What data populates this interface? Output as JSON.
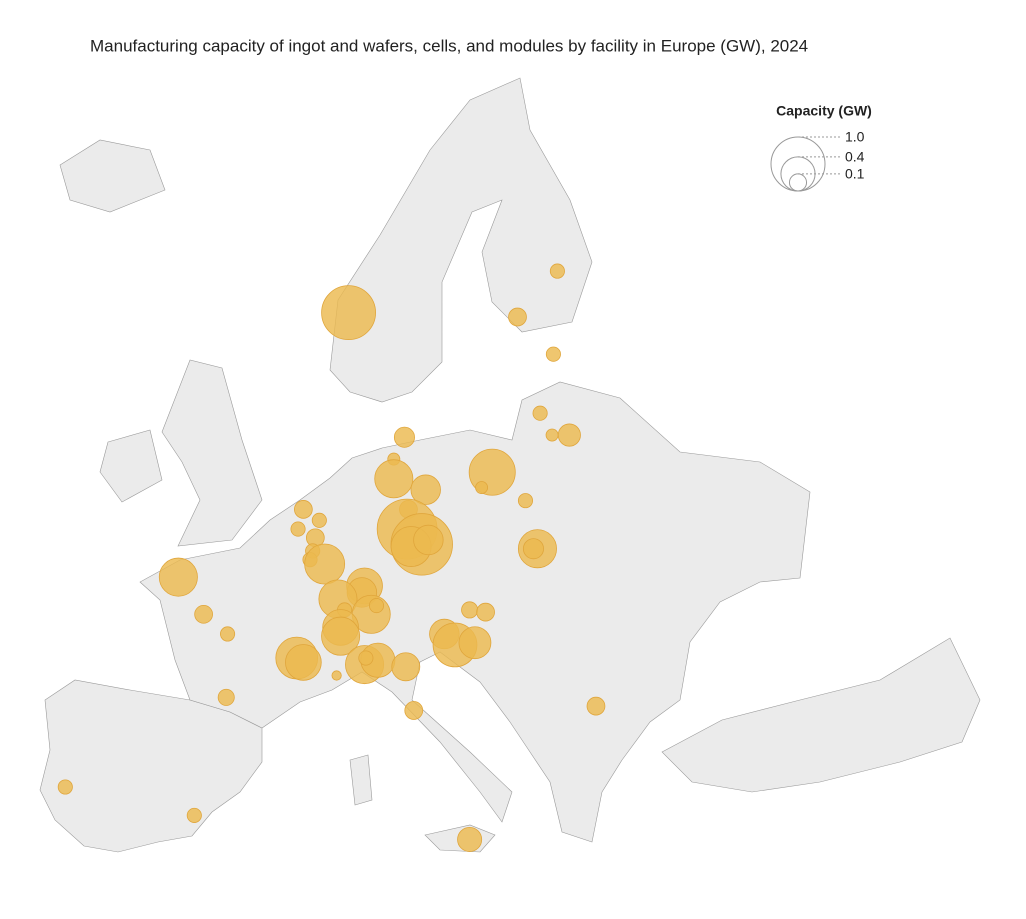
{
  "chart_data": {
    "type": "bubble-map",
    "title": "Manufacturing capacity of ingot and wafers, cells, and modules by facility in Europe (GW), 2024",
    "legend": {
      "title": "Capacity (GW)",
      "sizes": [
        {
          "value": 1,
          "label": "1.0"
        },
        {
          "value": 0.4,
          "label": "0.4"
        },
        {
          "value": 0.1,
          "label": "0.1"
        }
      ]
    },
    "color": "#ebb94f",
    "facilities": [
      {
        "lon": 12.3,
        "lat": 60.4,
        "capacity": 1.0
      },
      {
        "lon": 25.0,
        "lat": 60.2,
        "capacity": 0.11
      },
      {
        "lon": 28.0,
        "lat": 62.3,
        "capacity": 0.07
      },
      {
        "lon": 27.7,
        "lat": 58.5,
        "capacity": 0.07
      },
      {
        "lon": 26.7,
        "lat": 55.8,
        "capacity": 0.07
      },
      {
        "lon": 27.6,
        "lat": 54.8,
        "capacity": 0.05
      },
      {
        "lon": 28.9,
        "lat": 54.8,
        "capacity": 0.17
      },
      {
        "lon": 16.5,
        "lat": 54.7,
        "capacity": 0.14
      },
      {
        "lon": 15.7,
        "lat": 53.7,
        "capacity": 0.05
      },
      {
        "lon": 15.7,
        "lat": 52.8,
        "capacity": 0.5
      },
      {
        "lon": 18.1,
        "lat": 52.3,
        "capacity": 0.3
      },
      {
        "lon": 23.1,
        "lat": 53.1,
        "capacity": 0.73
      },
      {
        "lon": 22.3,
        "lat": 52.4,
        "capacity": 0.05
      },
      {
        "lon": 25.6,
        "lat": 51.8,
        "capacity": 0.07
      },
      {
        "lon": 26.5,
        "lat": 49.6,
        "capacity": 0.5
      },
      {
        "lon": 26.2,
        "lat": 49.6,
        "capacity": 0.14
      },
      {
        "lon": 16.8,
        "lat": 51.4,
        "capacity": 0.11
      },
      {
        "lon": 16.7,
        "lat": 50.5,
        "capacity": 1.23
      },
      {
        "lon": 17.8,
        "lat": 49.8,
        "capacity": 1.3
      },
      {
        "lon": 17.0,
        "lat": 49.7,
        "capacity": 0.55
      },
      {
        "lon": 18.3,
        "lat": 50.0,
        "capacity": 0.3
      },
      {
        "lon": 8.9,
        "lat": 51.4,
        "capacity": 0.11
      },
      {
        "lon": 10.1,
        "lat": 50.9,
        "capacity": 0.07
      },
      {
        "lon": 8.5,
        "lat": 50.5,
        "capacity": 0.07
      },
      {
        "lon": 9.8,
        "lat": 50.1,
        "capacity": 0.11
      },
      {
        "lon": 9.6,
        "lat": 49.5,
        "capacity": 0.07
      },
      {
        "lon": 9.4,
        "lat": 49.1,
        "capacity": 0.07
      },
      {
        "lon": 10.5,
        "lat": 48.9,
        "capacity": 0.55
      },
      {
        "lon": -0.5,
        "lat": 48.3,
        "capacity": 0.5
      },
      {
        "lon": 13.5,
        "lat": 47.9,
        "capacity": 0.44
      },
      {
        "lon": 13.3,
        "lat": 47.6,
        "capacity": 0.3
      },
      {
        "lon": 11.5,
        "lat": 47.3,
        "capacity": 0.5
      },
      {
        "lon": 14.0,
        "lat": 46.6,
        "capacity": 0.5
      },
      {
        "lon": 14.4,
        "lat": 47.0,
        "capacity": 0.07
      },
      {
        "lon": 12.0,
        "lat": 46.8,
        "capacity": 0.07
      },
      {
        "lon": 11.7,
        "lat": 46.0,
        "capacity": 0.44
      },
      {
        "lon": 11.7,
        "lat": 45.6,
        "capacity": 0.5
      },
      {
        "lon": 1.4,
        "lat": 46.6,
        "capacity": 0.11
      },
      {
        "lon": 3.2,
        "lat": 45.7,
        "capacity": 0.07
      },
      {
        "lon": 21.4,
        "lat": 46.8,
        "capacity": 0.09
      },
      {
        "lon": 22.6,
        "lat": 46.7,
        "capacity": 0.11
      },
      {
        "lon": 19.5,
        "lat": 45.7,
        "capacity": 0.3
      },
      {
        "lon": 20.3,
        "lat": 45.2,
        "capacity": 0.66
      },
      {
        "lon": 21.8,
        "lat": 45.3,
        "capacity": 0.35
      },
      {
        "lon": 8.4,
        "lat": 44.6,
        "capacity": 0.6
      },
      {
        "lon": 8.9,
        "lat": 44.4,
        "capacity": 0.44
      },
      {
        "lon": 13.5,
        "lat": 44.3,
        "capacity": 0.5
      },
      {
        "lon": 14.5,
        "lat": 44.5,
        "capacity": 0.4
      },
      {
        "lon": 13.6,
        "lat": 44.6,
        "capacity": 0.07
      },
      {
        "lon": 16.6,
        "lat": 44.2,
        "capacity": 0.27
      },
      {
        "lon": 11.4,
        "lat": 43.8,
        "capacity": 0.03
      },
      {
        "lon": 3.1,
        "lat": 42.8,
        "capacity": 0.09
      },
      {
        "lon": 17.2,
        "lat": 42.2,
        "capacity": 0.11
      },
      {
        "lon": 30.9,
        "lat": 42.4,
        "capacity": 0.11
      },
      {
        "lon": -9.0,
        "lat": 38.7,
        "capacity": 0.07
      },
      {
        "lon": 0.7,
        "lat": 37.4,
        "capacity": 0.07
      },
      {
        "lon": 21.4,
        "lat": 36.3,
        "capacity": 0.2
      }
    ]
  }
}
